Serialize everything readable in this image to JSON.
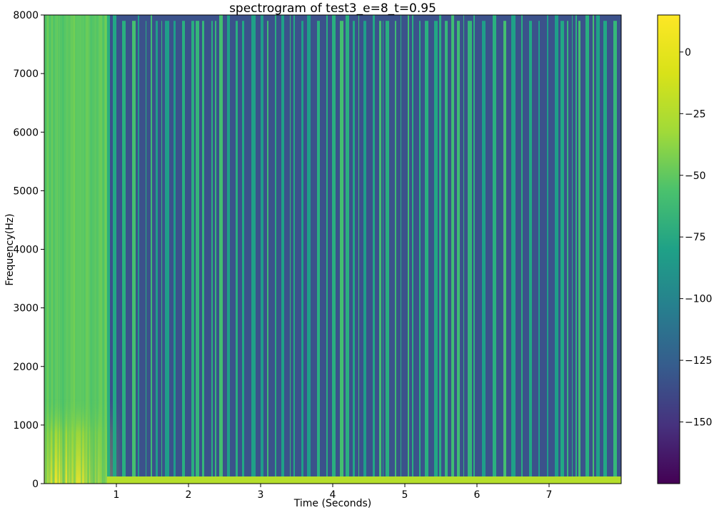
{
  "chart_data": {
    "type": "heatmap",
    "title": "spectrogram of test3_e=8_t=0.95",
    "xlabel": "Time (Seconds)",
    "ylabel": "Frequency(Hz)",
    "xlim": [
      0,
      8
    ],
    "ylim": [
      0,
      8000
    ],
    "x_ticks": [
      1,
      2,
      3,
      4,
      5,
      6,
      7
    ],
    "y_ticks": [
      0,
      1000,
      2000,
      3000,
      4000,
      5000,
      6000,
      7000,
      8000
    ],
    "colormap": "viridis",
    "colorbar": {
      "range": [
        -175,
        15
      ],
      "ticks": [
        0,
        -25,
        -50,
        -75,
        -100,
        -125,
        -150
      ],
      "tick_labels": [
        "0",
        "−25",
        "−50",
        "−75",
        "−100",
        "−125",
        "−150"
      ]
    },
    "grid": false,
    "regions": [
      {
        "time": [
          0,
          0.87
        ],
        "freq": [
          0,
          8000
        ],
        "level": -30
      },
      {
        "time": [
          0,
          0.35
        ],
        "freq": [
          0,
          1000
        ],
        "level": 5
      },
      {
        "time": [
          0.87,
          8
        ],
        "freq": [
          0,
          110
        ],
        "level": -20
      },
      {
        "time": [
          0.87,
          8
        ],
        "freq": [
          110,
          7900
        ],
        "level": -135,
        "note": "alternating vertical stripes between -135 and -40"
      }
    ]
  }
}
